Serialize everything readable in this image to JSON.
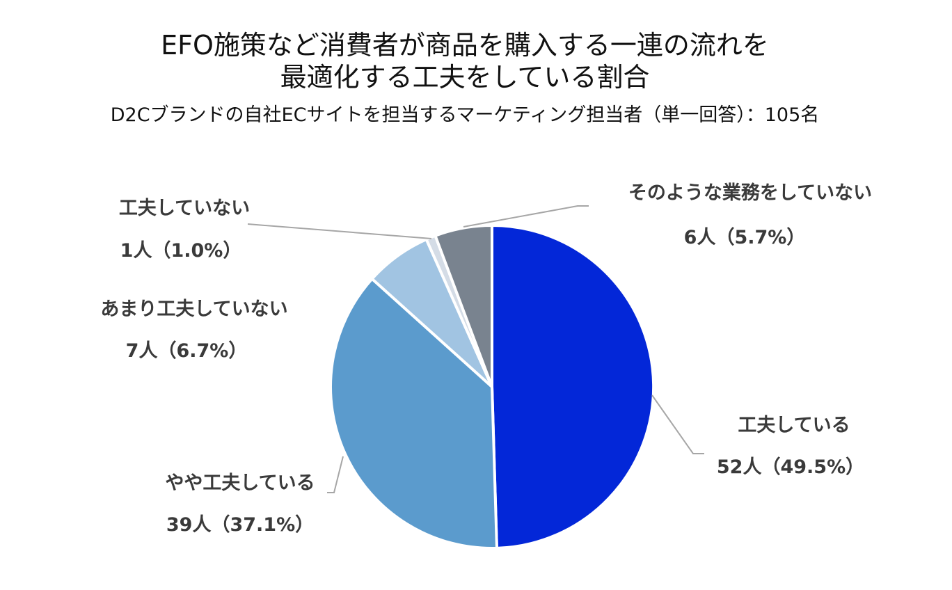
{
  "chart_data": {
    "type": "pie",
    "title_lines": [
      "EFO施策など消費者が商品を購入する一連の流れを",
      "最適化する工夫をしている割合"
    ],
    "subtitle": "D2Cブランドの自社ECサイトを担当するマーケティング担当者（単一回答）：105名",
    "total": 105,
    "slices": [
      {
        "label": "工夫している",
        "count": 52,
        "percent": 49.5,
        "value_label": "52人（49.5%）",
        "color": "#0327D8"
      },
      {
        "label": "やや工夫している",
        "count": 39,
        "percent": 37.1,
        "value_label": "39人（37.1%）",
        "color": "#5B9BCD"
      },
      {
        "label": "あまり工夫していない",
        "count": 7,
        "percent": 6.7,
        "value_label": "7人（6.7%）",
        "color": "#A1C4E2"
      },
      {
        "label": "工夫していない",
        "count": 1,
        "percent": 1.0,
        "value_label": "1人（1.0%）",
        "color": "#D4DCE6"
      },
      {
        "label": "そのような業務をしていない",
        "count": 6,
        "percent": 5.7,
        "value_label": "6人（5.7%）",
        "color": "#79838F"
      }
    ],
    "start": "12 o'clock",
    "direction": "clockwise",
    "legend": "none",
    "label_style": "outside with leader lines"
  }
}
